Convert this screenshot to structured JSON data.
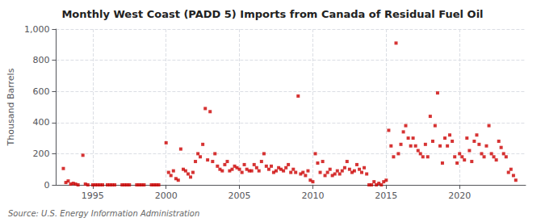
{
  "chart_data": {
    "type": "scatter",
    "title": "Monthly West Coast (PADD 5) Imports from Canada of Residual Fuel Oil",
    "ylabel": "Thousand Barrels",
    "annotation": "Source: U.S. Energy Information Administration",
    "color": "#cc0000",
    "marker": "square",
    "grid": true,
    "xlim": [
      1992.5,
      2024.5
    ],
    "xticks": [
      1995,
      2000,
      2005,
      2010,
      2015,
      2020
    ],
    "ylim": [
      0,
      1000
    ],
    "yticks": [
      0,
      200,
      400,
      600,
      800,
      {
        "value": 1000,
        "label": "1,000"
      }
    ],
    "x": [
      1993.0,
      1993.17,
      1993.33,
      1993.5,
      1993.67,
      1993.83,
      1994.0,
      1994.33,
      1994.5,
      1994.67,
      1995.0,
      1995.17,
      1995.33,
      1995.5,
      1995.67,
      1996.0,
      1996.17,
      1996.33,
      1996.5,
      1997.0,
      1997.17,
      1997.33,
      1997.5,
      1998.0,
      1998.17,
      1998.33,
      1998.5,
      1999.0,
      1999.17,
      1999.33,
      1999.5,
      2000.0,
      2000.17,
      2000.33,
      2000.5,
      2000.67,
      2000.83,
      2001.0,
      2001.17,
      2001.33,
      2001.5,
      2001.67,
      2001.83,
      2002.0,
      2002.17,
      2002.33,
      2002.5,
      2002.67,
      2002.83,
      2003.0,
      2003.17,
      2003.33,
      2003.5,
      2003.67,
      2003.83,
      2004.0,
      2004.17,
      2004.33,
      2004.5,
      2004.67,
      2004.83,
      2005.0,
      2005.17,
      2005.33,
      2005.5,
      2005.67,
      2005.83,
      2006.0,
      2006.17,
      2006.33,
      2006.5,
      2006.67,
      2006.83,
      2007.0,
      2007.17,
      2007.33,
      2007.5,
      2007.67,
      2007.83,
      2008.0,
      2008.17,
      2008.33,
      2008.5,
      2008.67,
      2008.83,
      2009.0,
      2009.17,
      2009.33,
      2009.5,
      2009.67,
      2009.83,
      2010.0,
      2010.17,
      2010.33,
      2010.5,
      2010.67,
      2010.83,
      2011.0,
      2011.17,
      2011.33,
      2011.5,
      2011.67,
      2011.83,
      2012.0,
      2012.17,
      2012.33,
      2012.5,
      2012.67,
      2012.83,
      2013.0,
      2013.17,
      2013.33,
      2013.5,
      2013.67,
      2013.83,
      2014.0,
      2014.17,
      2014.33,
      2014.5,
      2014.67,
      2014.83,
      2015.0,
      2015.17,
      2015.33,
      2015.5,
      2015.67,
      2015.83,
      2016.0,
      2016.17,
      2016.33,
      2016.5,
      2016.67,
      2016.83,
      2017.0,
      2017.17,
      2017.33,
      2017.5,
      2017.67,
      2017.83,
      2018.0,
      2018.17,
      2018.33,
      2018.5,
      2018.67,
      2018.83,
      2019.0,
      2019.17,
      2019.33,
      2019.5,
      2019.67,
      2019.83,
      2020.0,
      2020.17,
      2020.33,
      2020.5,
      2020.67,
      2020.83,
      2021.0,
      2021.17,
      2021.33,
      2021.5,
      2021.67,
      2021.83,
      2022.0,
      2022.17,
      2022.33,
      2022.5,
      2022.67,
      2022.83,
      2023.0,
      2023.17,
      2023.33,
      2023.5,
      2023.67,
      2023.83
    ],
    "values": [
      105,
      15,
      25,
      5,
      10,
      5,
      0,
      190,
      5,
      0,
      0,
      0,
      0,
      0,
      0,
      0,
      0,
      0,
      0,
      0,
      0,
      0,
      0,
      0,
      0,
      0,
      0,
      0,
      0,
      0,
      0,
      270,
      80,
      60,
      90,
      40,
      30,
      230,
      100,
      90,
      70,
      50,
      80,
      150,
      200,
      180,
      260,
      490,
      160,
      470,
      150,
      200,
      120,
      100,
      90,
      130,
      150,
      90,
      100,
      120,
      110,
      100,
      80,
      130,
      100,
      90,
      90,
      130,
      110,
      90,
      150,
      200,
      120,
      100,
      120,
      80,
      90,
      110,
      100,
      90,
      110,
      130,
      80,
      100,
      80,
      570,
      70,
      80,
      60,
      90,
      30,
      20,
      200,
      140,
      80,
      150,
      60,
      80,
      100,
      60,
      70,
      90,
      70,
      90,
      110,
      150,
      100,
      80,
      90,
      130,
      100,
      80,
      110,
      70,
      0,
      0,
      20,
      0,
      10,
      0,
      20,
      30,
      350,
      250,
      180,
      910,
      200,
      260,
      340,
      380,
      300,
      250,
      300,
      250,
      220,
      200,
      180,
      260,
      180,
      440,
      280,
      380,
      590,
      250,
      140,
      300,
      250,
      320,
      280,
      180,
      140,
      200,
      180,
      160,
      300,
      220,
      150,
      280,
      320,
      260,
      200,
      180,
      250,
      380,
      200,
      180,
      160,
      280,
      240,
      200,
      180,
      80,
      100,
      60,
      30
    ]
  }
}
